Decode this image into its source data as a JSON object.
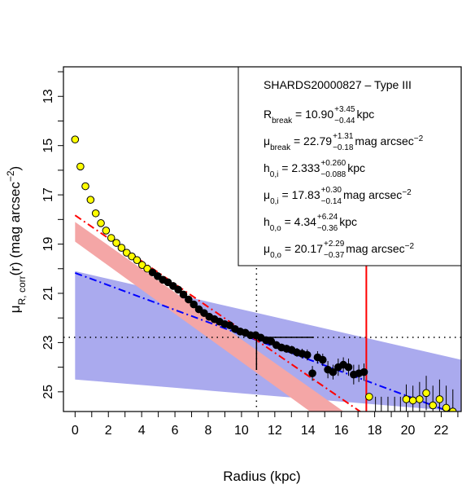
{
  "chart_data": {
    "type": "scatter",
    "xlabel": "Radius (kpc)",
    "ylabel": {
      "main": "μ",
      "sub": "R, corr",
      "tail": "(r) (mag arcsec",
      "sup": "−2",
      "end": ")"
    },
    "xlim": [
      -0.7,
      23.2
    ],
    "ylim": [
      25.8,
      11.8
    ],
    "y_inverted": true,
    "x_ticks": [
      0,
      2,
      4,
      6,
      8,
      10,
      12,
      14,
      16,
      18,
      20,
      22
    ],
    "y_ticks": [
      13,
      15,
      17,
      19,
      21,
      23,
      25
    ],
    "grid": false,
    "legend_position": "top-right",
    "legend": {
      "title": "SHARDS20000827  –  Type III",
      "rows": [
        {
          "name": "R",
          "sub": "break",
          "value": " = 10.90",
          "plus": "+3.45",
          "minus": "−0.44",
          "unit": " kpc"
        },
        {
          "name": "μ",
          "sub": "break",
          "value": " = 22.79",
          "plus": "+1.31",
          "minus": "−0.18",
          "unit": " mag arcsec",
          "unit_sup": "−2"
        },
        {
          "name": "h",
          "sub": "0,i",
          "value": " = 2.333",
          "plus": "+0.260",
          "minus": "−0.088",
          "unit": " kpc"
        },
        {
          "name": "μ",
          "sub": "0,i",
          "value": " = 17.83",
          "plus": "+0.30",
          "minus": "−0.14",
          "unit": " mag arcsec",
          "unit_sup": "−2"
        },
        {
          "name": "h",
          "sub": "0,o",
          "value": " = 4.34",
          "plus": "+6.24",
          "minus": "−0.36",
          "unit": " kpc"
        },
        {
          "name": "μ",
          "sub": "0,o",
          "value": " = 20.17",
          "plus": "+2.29",
          "minus": "−0.37",
          "unit": " mag arcsec",
          "unit_sup": "−2"
        }
      ]
    },
    "colors": {
      "fit_points": "#000000",
      "excluded_points": "#ffff00",
      "inner_fit": "#ff0000",
      "inner_band": "#f4a6a6",
      "outer_fit": "#0000ff",
      "outer_band": "#aaaaee",
      "limit_line": "#ff0000"
    },
    "break_radius": 10.9,
    "break_mu": 22.79,
    "limit_radius": 17.5,
    "inner_fit_line": {
      "x": [
        0,
        17.6
      ],
      "y": [
        17.83,
        26.02
      ]
    },
    "inner_band": {
      "upper": [
        [
          0,
          18.1
        ],
        [
          17.6,
          26.5
        ]
      ],
      "lower": [
        [
          0,
          18.9
        ],
        [
          17.6,
          27.5
        ]
      ]
    },
    "outer_fit_line": {
      "x": [
        0,
        23.2
      ],
      "y": [
        20.17,
        25.98
      ]
    },
    "outer_band": {
      "upper": [
        [
          0,
          20.1
        ],
        [
          23.2,
          23.7
        ]
      ],
      "lower": [
        [
          0,
          24.5
        ],
        [
          23.2,
          25.8
        ]
      ]
    },
    "series": [
      {
        "name": "",
        "role": "excluded",
        "x": [
          0.0,
          0.32,
          0.62,
          0.93,
          1.24,
          1.55,
          1.86,
          2.17,
          2.48,
          2.79,
          3.1,
          3.41,
          3.72,
          4.03,
          4.34
        ],
        "y": [
          14.75,
          15.85,
          16.65,
          17.2,
          17.75,
          18.15,
          18.45,
          18.75,
          18.95,
          19.15,
          19.35,
          19.5,
          19.65,
          19.85,
          20.0
        ]
      },
      {
        "name": "",
        "role": "fit",
        "x": [
          4.65,
          4.96,
          5.27,
          5.58,
          5.89,
          6.2,
          6.51,
          6.82,
          7.13,
          7.44,
          7.75,
          8.06,
          8.37,
          8.68,
          8.99,
          9.3,
          9.61,
          9.92,
          10.23,
          10.54,
          10.85,
          11.16,
          11.47,
          11.78,
          12.09,
          12.4,
          12.71,
          13.02,
          13.33,
          13.64,
          13.95,
          14.26,
          14.57,
          14.88,
          15.19,
          15.5,
          15.81,
          16.12,
          16.43,
          16.74,
          17.05,
          17.36
        ],
        "y": [
          20.15,
          20.3,
          20.45,
          20.55,
          20.7,
          20.85,
          21.05,
          21.25,
          21.45,
          21.65,
          21.8,
          21.95,
          22.05,
          22.15,
          22.25,
          22.3,
          22.45,
          22.55,
          22.6,
          22.7,
          22.7,
          22.8,
          22.9,
          22.95,
          23.1,
          23.2,
          23.25,
          23.3,
          23.4,
          23.45,
          23.5,
          24.25,
          23.6,
          23.7,
          24.1,
          24.2,
          24.0,
          23.9,
          24.0,
          24.3,
          24.25,
          24.2
        ],
        "err": [
          0.05,
          0.05,
          0.05,
          0.05,
          0.05,
          0.06,
          0.06,
          0.06,
          0.06,
          0.06,
          0.07,
          0.07,
          0.07,
          0.08,
          0.08,
          0.08,
          0.09,
          0.1,
          0.1,
          0.11,
          0.12,
          0.13,
          0.13,
          0.14,
          0.15,
          0.15,
          0.16,
          0.17,
          0.18,
          0.2,
          0.22,
          0.3,
          0.25,
          0.25,
          0.35,
          0.3,
          0.35,
          0.3,
          0.35,
          0.4,
          0.35,
          0.35
        ]
      },
      {
        "name": "",
        "role": "excluded",
        "x": [
          17.67,
          19.9,
          20.3,
          20.7,
          21.1,
          21.5,
          21.9,
          22.3,
          22.7
        ],
        "y": [
          25.2,
          25.3,
          25.35,
          25.3,
          25.05,
          25.55,
          25.3,
          25.65,
          25.8
        ],
        "err": [
          0,
          0.6,
          0.6,
          0.7,
          0.7,
          0.8,
          0.8,
          0.9,
          0.9
        ]
      }
    ],
    "unplotted_error_bars_x": [
      18.05,
      18.4,
      18.8,
      19.2,
      19.55
    ]
  }
}
